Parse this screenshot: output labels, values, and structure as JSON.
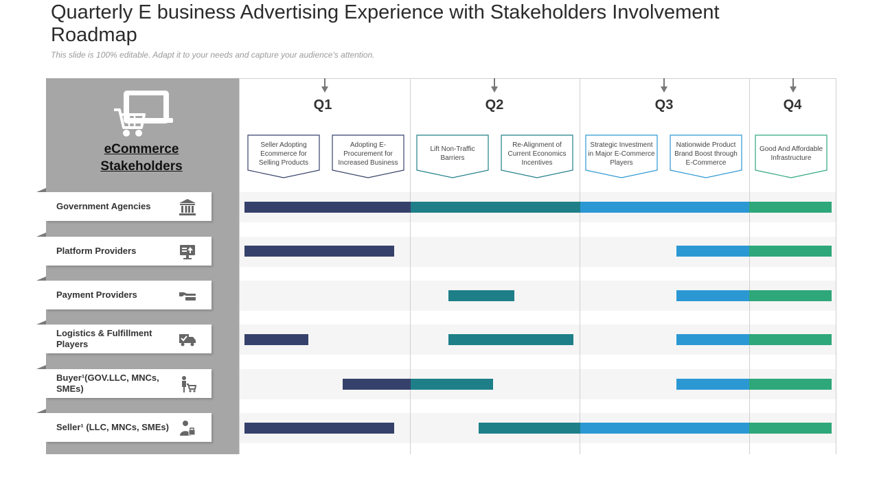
{
  "header": {
    "title": "Quarterly E business Advertising Experience with Stakeholders Involvement Roadmap",
    "subtitle": "This slide is 100% editable. Adapt it to your needs and capture your audience's attention."
  },
  "panel": {
    "title_line1": "eCommerce",
    "title_line2": "Stakeholders"
  },
  "colors": {
    "q1": "#35416a",
    "q2": "#1e7f88",
    "q3": "#2b98d4",
    "q4": "#2ea77a",
    "panel": "#a6a6a6"
  },
  "quarters": [
    "Q1",
    "Q2",
    "Q3",
    "Q4"
  ],
  "milestones": [
    {
      "text": "Seller Adopting Ecommerce for Selling Products",
      "color": "#35416a"
    },
    {
      "text": "Adopting E-Procurement for Increased Business",
      "color": "#35416a"
    },
    {
      "text": "Lift Non-Traffic Barriers",
      "color": "#1e7f88"
    },
    {
      "text": "Re-Alignment of Current Economics Incentives",
      "color": "#1e7f88"
    },
    {
      "text": "Strategic Investment in Major E-Commerce Players",
      "color": "#2b98d4"
    },
    {
      "text": "Nationwide Product Brand Boost through E-Commerce",
      "color": "#2b98d4"
    },
    {
      "text": "Good And Affordable Infrastructure",
      "color": "#2ea77a"
    }
  ],
  "stakeholders": [
    {
      "label": "Government Agencies",
      "icon": "bank-icon"
    },
    {
      "label": "Platform Providers",
      "icon": "monitor-icon"
    },
    {
      "label": "Payment Providers",
      "icon": "payment-hand-icon"
    },
    {
      "label": "Logistics  & Fulfillment Players",
      "icon": "delivery-truck-icon"
    },
    {
      "label": "Buyer¹(GOV.LLC,  MNCs, SMEs)",
      "icon": "shopper-cart-icon"
    },
    {
      "label": "Seller¹ (LLC, MNCs, SMEs)",
      "icon": "seller-person-icon"
    }
  ]
}
